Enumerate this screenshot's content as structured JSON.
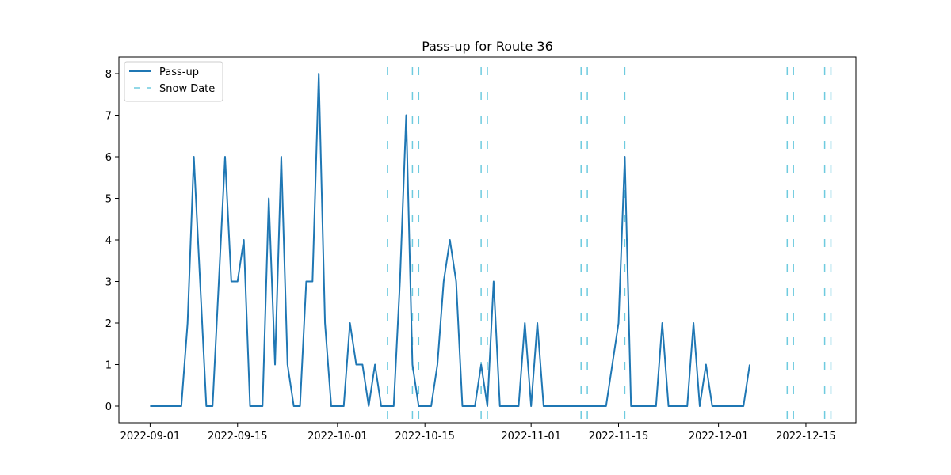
{
  "chart_data": {
    "type": "line",
    "title": "Pass-up for Route 36",
    "xlabel": "",
    "ylabel": "",
    "x_ticks": [
      "2022-09-01",
      "2022-09-15",
      "2022-10-01",
      "2022-10-15",
      "2022-11-01",
      "2022-11-15",
      "2022-12-01",
      "2022-12-15"
    ],
    "y_ticks": [
      "0",
      "1",
      "2",
      "3",
      "4",
      "5",
      "6",
      "7",
      "8"
    ],
    "xlim": [
      "2022-08-27",
      "2022-12-23"
    ],
    "ylim": [
      -0.4,
      8.4
    ],
    "grid": false,
    "legend_position": "top-left",
    "series": [
      {
        "name": "Pass-up",
        "color": "#1f77b4",
        "style": "solid",
        "points": [
          [
            "2022-09-01",
            0
          ],
          [
            "2022-09-02",
            0
          ],
          [
            "2022-09-03",
            0
          ],
          [
            "2022-09-04",
            0
          ],
          [
            "2022-09-05",
            0
          ],
          [
            "2022-09-06",
            0
          ],
          [
            "2022-09-07",
            2
          ],
          [
            "2022-09-08",
            6
          ],
          [
            "2022-09-09",
            3
          ],
          [
            "2022-09-10",
            0
          ],
          [
            "2022-09-11",
            0
          ],
          [
            "2022-09-12",
            3
          ],
          [
            "2022-09-13",
            6
          ],
          [
            "2022-09-14",
            3
          ],
          [
            "2022-09-15",
            3
          ],
          [
            "2022-09-16",
            4
          ],
          [
            "2022-09-17",
            0
          ],
          [
            "2022-09-18",
            0
          ],
          [
            "2022-09-19",
            0
          ],
          [
            "2022-09-20",
            5
          ],
          [
            "2022-09-21",
            1
          ],
          [
            "2022-09-22",
            6
          ],
          [
            "2022-09-23",
            1
          ],
          [
            "2022-09-24",
            0
          ],
          [
            "2022-09-25",
            0
          ],
          [
            "2022-09-26",
            3
          ],
          [
            "2022-09-27",
            3
          ],
          [
            "2022-09-28",
            8
          ],
          [
            "2022-09-29",
            2
          ],
          [
            "2022-09-30",
            0
          ],
          [
            "2022-10-01",
            0
          ],
          [
            "2022-10-02",
            0
          ],
          [
            "2022-10-03",
            2
          ],
          [
            "2022-10-04",
            1
          ],
          [
            "2022-10-05",
            1
          ],
          [
            "2022-10-06",
            0
          ],
          [
            "2022-10-07",
            1
          ],
          [
            "2022-10-08",
            0
          ],
          [
            "2022-10-09",
            0
          ],
          [
            "2022-10-10",
            0
          ],
          [
            "2022-10-11",
            3
          ],
          [
            "2022-10-12",
            7
          ],
          [
            "2022-10-13",
            1
          ],
          [
            "2022-10-14",
            0
          ],
          [
            "2022-10-15",
            0
          ],
          [
            "2022-10-16",
            0
          ],
          [
            "2022-10-17",
            1
          ],
          [
            "2022-10-18",
            3
          ],
          [
            "2022-10-19",
            4
          ],
          [
            "2022-10-20",
            3
          ],
          [
            "2022-10-21",
            0
          ],
          [
            "2022-10-22",
            0
          ],
          [
            "2022-10-23",
            0
          ],
          [
            "2022-10-24",
            1
          ],
          [
            "2022-10-25",
            0
          ],
          [
            "2022-10-26",
            3
          ],
          [
            "2022-10-27",
            0
          ],
          [
            "2022-10-28",
            0
          ],
          [
            "2022-10-29",
            0
          ],
          [
            "2022-10-30",
            0
          ],
          [
            "2022-10-31",
            2
          ],
          [
            "2022-11-01",
            0
          ],
          [
            "2022-11-02",
            2
          ],
          [
            "2022-11-03",
            0
          ],
          [
            "2022-11-04",
            0
          ],
          [
            "2022-11-05",
            0
          ],
          [
            "2022-11-06",
            0
          ],
          [
            "2022-11-07",
            0
          ],
          [
            "2022-11-08",
            0
          ],
          [
            "2022-11-09",
            0
          ],
          [
            "2022-11-10",
            0
          ],
          [
            "2022-11-11",
            0
          ],
          [
            "2022-11-12",
            0
          ],
          [
            "2022-11-13",
            0
          ],
          [
            "2022-11-14",
            1
          ],
          [
            "2022-11-15",
            2
          ],
          [
            "2022-11-16",
            6
          ],
          [
            "2022-11-17",
            0
          ],
          [
            "2022-11-18",
            0
          ],
          [
            "2022-11-19",
            0
          ],
          [
            "2022-11-20",
            0
          ],
          [
            "2022-11-21",
            0
          ],
          [
            "2022-11-22",
            2
          ],
          [
            "2022-11-23",
            0
          ],
          [
            "2022-11-24",
            0
          ],
          [
            "2022-11-25",
            0
          ],
          [
            "2022-11-26",
            0
          ],
          [
            "2022-11-27",
            2
          ],
          [
            "2022-11-28",
            0
          ],
          [
            "2022-11-29",
            1
          ],
          [
            "2022-11-30",
            0
          ],
          [
            "2022-12-01",
            0
          ],
          [
            "2022-12-02",
            0
          ],
          [
            "2022-12-03",
            0
          ],
          [
            "2022-12-04",
            0
          ],
          [
            "2022-12-05",
            0
          ],
          [
            "2022-12-06",
            1
          ]
        ]
      },
      {
        "name": "Snow Date",
        "color": "#6ecbdf",
        "style": "dashed-vertical",
        "dates": [
          "2022-10-09",
          "2022-10-13",
          "2022-10-14",
          "2022-10-24",
          "2022-10-25",
          "2022-11-09",
          "2022-11-10",
          "2022-11-16",
          "2022-12-12",
          "2022-12-13",
          "2022-12-18",
          "2022-12-19"
        ]
      }
    ]
  }
}
